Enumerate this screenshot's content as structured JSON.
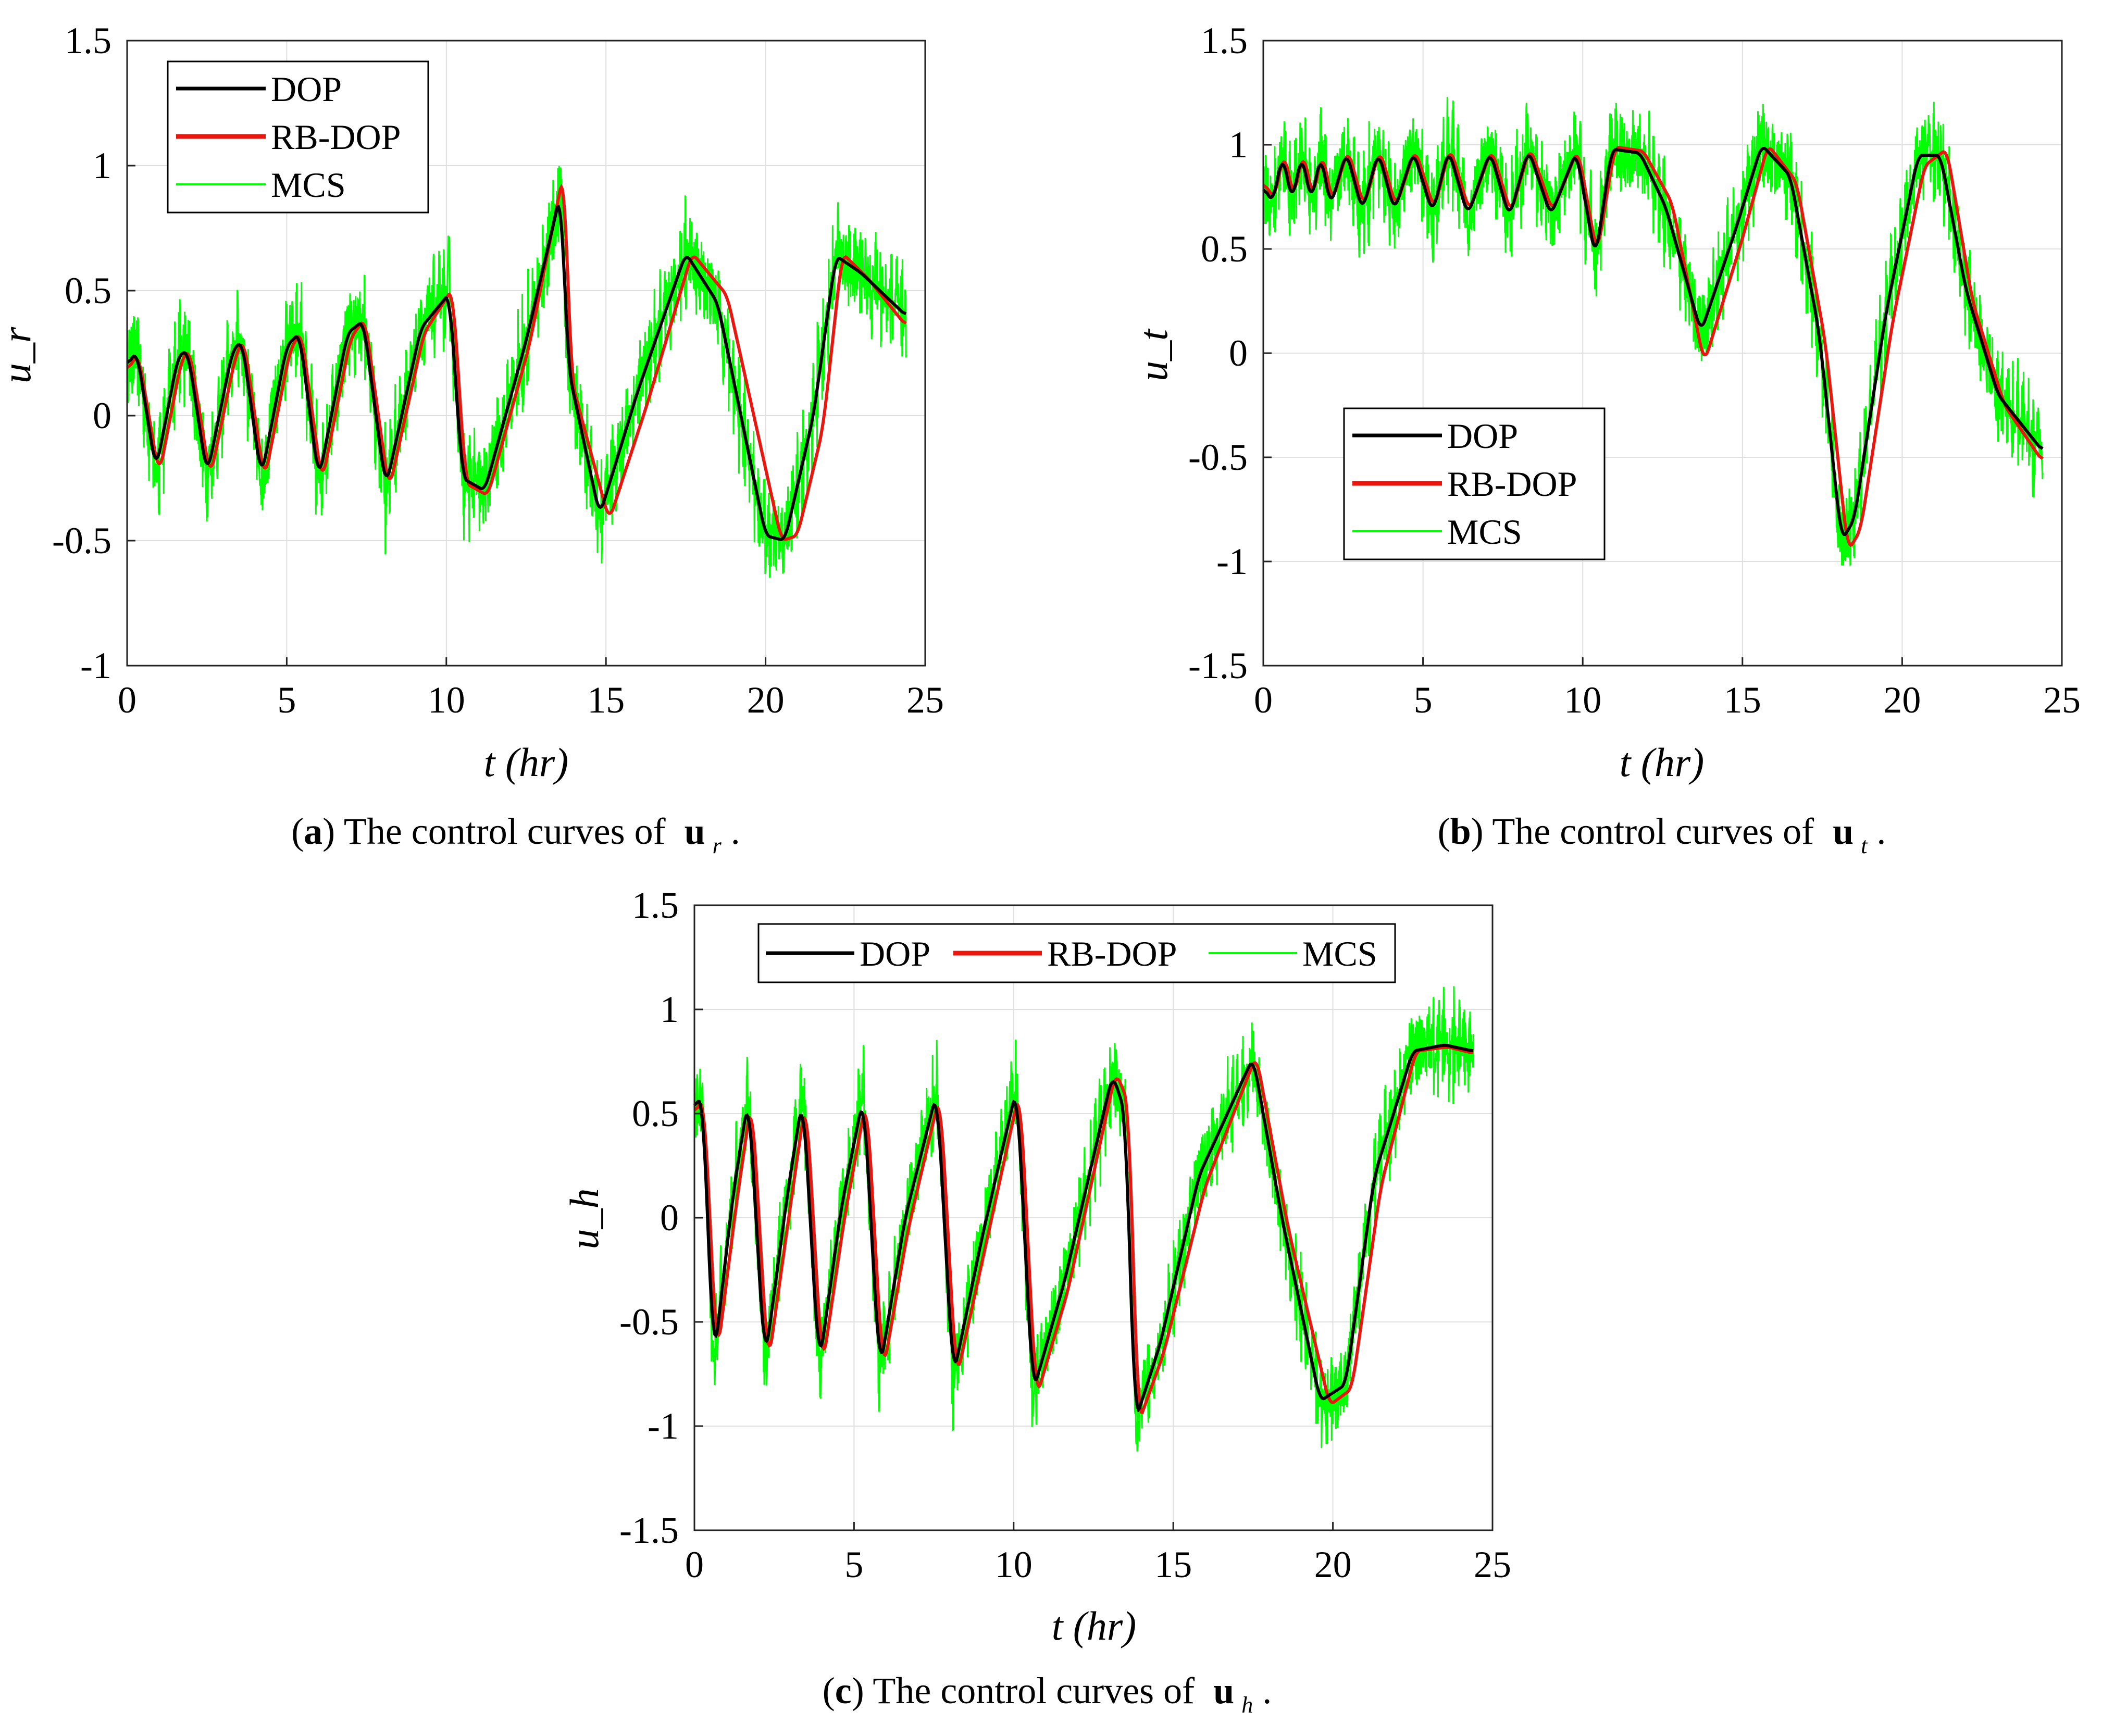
{
  "figure": {
    "legend_labels": {
      "dop": "DOP",
      "rbdop": "RB-DOP",
      "mcs": "MCS"
    },
    "colors": {
      "dop": "#000000",
      "rbdop": "#e8170f",
      "mcs": "#00ff00",
      "grid": "#e0e0e0",
      "axis": "#222222"
    }
  },
  "chart_data": [
    {
      "id": "a",
      "type": "line",
      "xlabel": "t (hr)",
      "ylabel": "u_r",
      "xlim": [
        0,
        25
      ],
      "ylim": [
        -1,
        1.5
      ],
      "xticks": [
        0,
        5,
        10,
        15,
        20,
        25
      ],
      "yticks": [
        -1,
        -0.5,
        0,
        0.5,
        1,
        1.5
      ],
      "xtick_labels": [
        "0",
        "5",
        "10",
        "15",
        "20",
        "25"
      ],
      "ytick_labels": [
        "-1",
        "-0.5",
        "0",
        "0.5",
        "1",
        "1.5"
      ],
      "legend_position": "top-left",
      "legend_layout": "vertical",
      "caption": {
        "letter": "a",
        "text": ") The control curves of ",
        "symbol": "u",
        "subscript": "r",
        "tail": "."
      },
      "mcs_noise": 0.28,
      "series": [
        {
          "name": "DOP",
          "x": [
            0,
            0.3,
            0.9,
            1.6,
            1.9,
            2.5,
            3.3,
            3.6,
            4.2,
            5.0,
            5.4,
            6.0,
            6.9,
            7.4,
            8.1,
            9.2,
            10.1,
            10.5,
            11.2,
            12.5,
            13.6,
            13.8,
            14.8,
            16.0,
            17.5,
            18.5,
            20.0,
            20.6,
            21.5,
            22.2,
            23.0,
            24.4
          ],
          "y": [
            0.2,
            0.26,
            -0.22,
            0.24,
            0.26,
            -0.24,
            0.26,
            0.3,
            -0.25,
            0.28,
            0.33,
            -0.26,
            0.33,
            0.38,
            -0.29,
            0.35,
            0.49,
            -0.25,
            -0.3,
            0.3,
            0.9,
            0.2,
            -0.4,
            0.1,
            0.65,
            0.45,
            -0.48,
            -0.5,
            0.0,
            0.64,
            0.57,
            0.4
          ]
        },
        {
          "name": "RB-DOP",
          "x": [
            0,
            0.35,
            1.0,
            1.7,
            1.95,
            2.6,
            3.4,
            3.65,
            4.3,
            5.1,
            5.45,
            6.1,
            7.0,
            7.45,
            8.2,
            9.3,
            10.2,
            10.6,
            11.3,
            12.6,
            13.7,
            13.9,
            15.1,
            16.3,
            17.7,
            18.8,
            20.5,
            21.0,
            21.8,
            22.4,
            23.2,
            24.4
          ],
          "y": [
            0.18,
            0.25,
            -0.24,
            0.22,
            0.27,
            -0.25,
            0.24,
            0.31,
            -0.26,
            0.26,
            0.34,
            -0.27,
            0.31,
            0.39,
            -0.3,
            0.33,
            0.51,
            -0.27,
            -0.32,
            0.28,
            0.99,
            0.15,
            -0.42,
            0.05,
            0.65,
            0.48,
            -0.5,
            -0.48,
            -0.05,
            0.65,
            0.55,
            0.36
          ]
        }
      ]
    },
    {
      "id": "b",
      "type": "line",
      "xlabel": "t (hr)",
      "ylabel": "u_t",
      "xlim": [
        0,
        25
      ],
      "ylim": [
        -1.5,
        1.5
      ],
      "xticks": [
        0,
        5,
        10,
        15,
        20,
        25
      ],
      "yticks": [
        -1.5,
        -1,
        -0.5,
        0,
        0.5,
        1,
        1.5
      ],
      "xtick_labels": [
        "0",
        "5",
        "10",
        "15",
        "20",
        "25"
      ],
      "ytick_labels": [
        "-1.5",
        "-1",
        "-0.5",
        "0",
        "0.5",
        "1",
        "1.5"
      ],
      "legend_position": "bottom-left",
      "legend_layout": "vertical",
      "caption": {
        "letter": "b",
        "text": ") The control curves of ",
        "symbol": "u",
        "subscript": "t",
        "tail": "."
      },
      "mcs_noise": 0.32,
      "series": [
        {
          "name": "DOP",
          "x": [
            0,
            0.3,
            0.6,
            0.9,
            1.2,
            1.5,
            1.8,
            2.1,
            2.6,
            3.1,
            3.6,
            4.1,
            4.7,
            5.3,
            5.8,
            6.4,
            7.1,
            7.7,
            8.3,
            9.0,
            9.8,
            10.4,
            10.9,
            11.8,
            12.6,
            13.7,
            14.8,
            15.6,
            16.5,
            17.4,
            18.1,
            18.5,
            19.5,
            20.5,
            21.2,
            22.0,
            23.0,
            24.4
          ],
          "y": [
            0.8,
            0.72,
            0.96,
            0.72,
            0.96,
            0.72,
            0.96,
            0.7,
            0.97,
            0.68,
            0.97,
            0.68,
            0.97,
            0.67,
            0.98,
            0.66,
            0.97,
            0.65,
            0.98,
            0.66,
            0.97,
            0.45,
            0.98,
            0.96,
            0.7,
            0.1,
            0.6,
            1.0,
            0.85,
            0.1,
            -0.9,
            -0.8,
            0.2,
            0.95,
            0.95,
            0.3,
            -0.2,
            -0.47
          ]
        },
        {
          "name": "RB-DOP",
          "x": [
            0,
            0.35,
            0.65,
            0.95,
            1.25,
            1.55,
            1.85,
            2.15,
            2.65,
            3.15,
            3.65,
            4.15,
            4.75,
            5.35,
            5.85,
            6.45,
            7.15,
            7.75,
            8.35,
            9.05,
            9.85,
            10.45,
            11.0,
            11.9,
            12.8,
            13.8,
            15.0,
            15.8,
            16.7,
            17.6,
            18.3,
            18.7,
            19.7,
            20.7,
            21.4,
            22.2,
            23.2,
            24.4
          ],
          "y": [
            0.82,
            0.74,
            0.97,
            0.74,
            0.97,
            0.74,
            0.97,
            0.72,
            0.98,
            0.7,
            0.98,
            0.7,
            0.98,
            0.69,
            0.99,
            0.68,
            0.98,
            0.67,
            0.99,
            0.68,
            0.98,
            0.47,
            0.99,
            0.97,
            0.72,
            -0.05,
            0.55,
            1.0,
            0.82,
            0.05,
            -0.95,
            -0.85,
            0.15,
            0.9,
            0.98,
            0.25,
            -0.25,
            -0.52
          ]
        }
      ]
    },
    {
      "id": "c",
      "type": "line",
      "xlabel": "t (hr)",
      "ylabel": "u_h",
      "xlim": [
        0,
        25
      ],
      "ylim": [
        -1.5,
        1.5
      ],
      "xticks": [
        0,
        5,
        10,
        15,
        20,
        25
      ],
      "yticks": [
        -1.5,
        -1,
        -0.5,
        0,
        0.5,
        1,
        1.5
      ],
      "xtick_labels": [
        "0",
        "5",
        "10",
        "15",
        "20",
        "25"
      ],
      "ytick_labels": [
        "-1.5",
        "-1",
        "-0.5",
        "0",
        "0.5",
        "1",
        "1.5"
      ],
      "legend_position": "top",
      "legend_layout": "horizontal",
      "caption": {
        "letter": "c",
        "text": ") The control curves of ",
        "symbol": "u",
        "subscript": "h",
        "tail": "."
      },
      "mcs_noise": 0.3,
      "series": [
        {
          "name": "DOP",
          "x": [
            0,
            0.25,
            0.6,
            1.2,
            1.7,
            2.2,
            2.9,
            3.4,
            3.9,
            4.6,
            5.3,
            5.8,
            6.6,
            7.6,
            8.1,
            9.0,
            10.1,
            10.6,
            11.6,
            13.1,
            13.5,
            13.8,
            14.6,
            15.8,
            17.5,
            18.4,
            19.6,
            20.4,
            21.3,
            22.5,
            23.5,
            24.4
          ],
          "y": [
            0.52,
            0.6,
            -0.7,
            0.1,
            0.59,
            -0.7,
            0.1,
            0.59,
            -0.72,
            0.05,
            0.59,
            -0.74,
            0.0,
            0.61,
            -0.77,
            -0.1,
            0.63,
            -0.84,
            -0.3,
            0.69,
            0.5,
            -0.98,
            -0.6,
            0.2,
            0.77,
            0.0,
            -0.88,
            -0.8,
            0.2,
            0.8,
            0.83,
            0.8
          ]
        },
        {
          "name": "RB-DOP",
          "x": [
            0,
            0.3,
            0.7,
            1.3,
            1.8,
            2.3,
            3.0,
            3.5,
            4.0,
            4.7,
            5.4,
            5.9,
            6.7,
            7.7,
            8.2,
            9.1,
            10.2,
            10.7,
            11.7,
            13.2,
            13.6,
            13.9,
            14.7,
            16.0,
            17.6,
            18.6,
            19.9,
            20.6,
            21.5,
            22.6,
            23.6,
            24.4
          ],
          "y": [
            0.5,
            0.58,
            -0.68,
            0.05,
            0.58,
            -0.72,
            0.05,
            0.58,
            -0.73,
            0.0,
            0.58,
            -0.75,
            -0.05,
            0.6,
            -0.78,
            -0.15,
            0.62,
            -0.87,
            -0.35,
            0.7,
            0.55,
            -0.99,
            -0.65,
            0.15,
            0.78,
            -0.05,
            -0.9,
            -0.82,
            0.15,
            0.8,
            0.82,
            0.79
          ]
        }
      ]
    }
  ]
}
